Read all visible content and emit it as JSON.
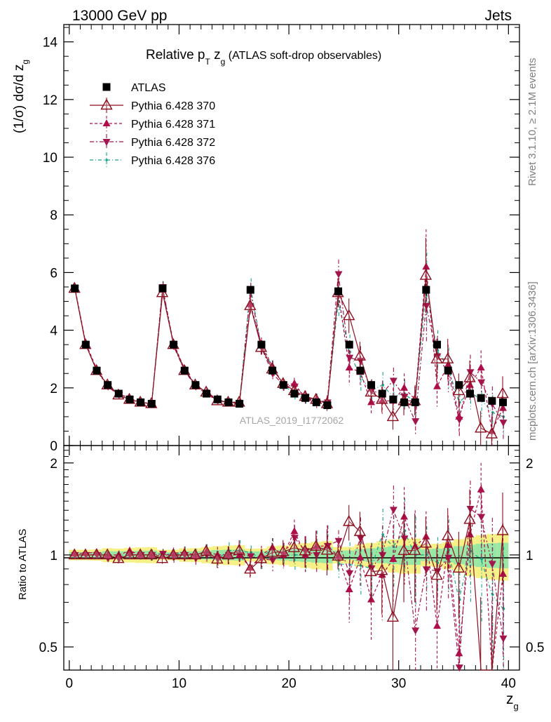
{
  "header": {
    "left": "13000 GeV pp",
    "right": "Jets"
  },
  "side_labels": {
    "rivet": "Rivet 3.1.10, ≥ 2.1M events",
    "mcplots": "mcplots.cern.ch [arXiv:1306.3436]"
  },
  "analysis_tag": "ATLAS_2019_I1772062",
  "chart_data": {
    "type": "scatter",
    "title_main": "Relative p",
    "title_sub": "T",
    "title_var": " z",
    "title_var_sub": "g",
    "title_rest": " (ATLAS soft-drop observables)",
    "ylabel": "(1/σ) dσ/d z",
    "ylabel_sub": "g",
    "xlabel": "z",
    "xlabel_sub": "g",
    "ratio_ylabel": "Ratio to ATLAS",
    "xlim": [
      -0.5,
      41
    ],
    "ylim": [
      0,
      14.6
    ],
    "ratio_ylim": [
      0.42,
      2.28
    ],
    "x_ticks": [
      "0",
      "10",
      "20",
      "30",
      "40"
    ],
    "x_tick_values": [
      0,
      10,
      20,
      30,
      40
    ],
    "y_ticks": [
      "0",
      "2",
      "4",
      "6",
      "8",
      "10",
      "12",
      "14"
    ],
    "y_tick_values": [
      0,
      2,
      4,
      6,
      8,
      10,
      12,
      14
    ],
    "ratio_ticks": [
      "0.5",
      "1",
      "2"
    ],
    "ratio_tick_values": [
      0.5,
      1,
      2
    ],
    "x": [
      0.5,
      1.5,
      2.5,
      3.5,
      4.5,
      5.5,
      6.5,
      7.5,
      8.5,
      9.5,
      10.5,
      11.5,
      12.5,
      13.5,
      14.5,
      15.5,
      16.5,
      17.5,
      18.5,
      19.5,
      20.5,
      21.5,
      22.5,
      23.5,
      24.5,
      25.5,
      26.5,
      27.5,
      28.5,
      29.5,
      30.5,
      31.5,
      32.5,
      33.5,
      34.5,
      35.5,
      36.5,
      37.5,
      38.5,
      39.5
    ],
    "series": [
      {
        "name": "ATLAS",
        "values": [
          5.45,
          3.5,
          2.6,
          2.1,
          1.8,
          1.6,
          1.5,
          1.45,
          5.45,
          3.5,
          2.6,
          2.1,
          1.8,
          1.6,
          1.5,
          1.45,
          5.4,
          3.5,
          2.6,
          2.1,
          1.8,
          1.65,
          1.5,
          1.4,
          5.35,
          3.5,
          2.6,
          2.1,
          1.8,
          1.6,
          1.5,
          1.5,
          5.4,
          3.5,
          2.6,
          2.1,
          1.8,
          1.65,
          1.55,
          1.5
        ],
        "errors": [
          0.08,
          0.06,
          0.05,
          0.05,
          0.04,
          0.04,
          0.04,
          0.04,
          0.08,
          0.06,
          0.06,
          0.05,
          0.05,
          0.05,
          0.05,
          0.05,
          0.12,
          0.08,
          0.08,
          0.07,
          0.07,
          0.07,
          0.07,
          0.07,
          0.15,
          0.1,
          0.1,
          0.09,
          0.09,
          0.09,
          0.09,
          0.09,
          0.2,
          0.14,
          0.12,
          0.12,
          0.12,
          0.12,
          0.12,
          0.12
        ],
        "color": "#000000"
      },
      {
        "name": "Pythia 6.428 370",
        "values": [
          5.45,
          3.5,
          2.6,
          2.1,
          1.75,
          1.6,
          1.5,
          1.45,
          5.3,
          3.5,
          2.6,
          2.1,
          1.85,
          1.55,
          1.5,
          1.5,
          4.85,
          3.4,
          2.65,
          2.15,
          1.9,
          1.7,
          1.6,
          1.45,
          5.3,
          4.5,
          3.1,
          1.85,
          1.6,
          1.0,
          1.55,
          1.55,
          5.9,
          3.0,
          3.0,
          1.9,
          2.35,
          0.6,
          0.4,
          1.8
        ],
        "errors": [
          0.1,
          0.08,
          0.07,
          0.06,
          0.06,
          0.05,
          0.05,
          0.06,
          0.2,
          0.15,
          0.12,
          0.1,
          0.1,
          0.1,
          0.1,
          0.12,
          0.3,
          0.25,
          0.2,
          0.2,
          0.2,
          0.2,
          0.2,
          0.25,
          0.5,
          0.6,
          0.5,
          0.4,
          0.45,
          0.45,
          0.5,
          0.5,
          1.3,
          0.7,
          0.7,
          0.6,
          0.6,
          0.6,
          0.6,
          0.6
        ],
        "color": "#8b0f1f"
      },
      {
        "name": "Pythia 6.428 371",
        "values": [
          5.5,
          3.55,
          2.65,
          2.1,
          1.8,
          1.65,
          1.5,
          1.45,
          5.4,
          3.55,
          2.65,
          2.1,
          1.85,
          1.6,
          1.5,
          1.45,
          4.9,
          3.5,
          2.75,
          2.1,
          2.15,
          1.65,
          1.6,
          1.5,
          5.3,
          2.7,
          2.55,
          1.5,
          1.55,
          1.55,
          2.0,
          1.6,
          6.2,
          2.05,
          2.8,
          1.0,
          2.1,
          2.7,
          0.5,
          1.3
        ],
        "errors": [
          0.1,
          0.08,
          0.07,
          0.06,
          0.06,
          0.05,
          0.05,
          0.06,
          0.2,
          0.15,
          0.12,
          0.1,
          0.1,
          0.1,
          0.1,
          0.12,
          0.3,
          0.25,
          0.2,
          0.2,
          0.2,
          0.2,
          0.2,
          0.25,
          0.5,
          0.6,
          0.5,
          0.4,
          0.45,
          0.45,
          0.5,
          0.5,
          1.3,
          0.7,
          0.7,
          0.6,
          0.6,
          0.6,
          0.6,
          0.6
        ],
        "color": "#b00e4a"
      },
      {
        "name": "Pythia 6.428 372",
        "values": [
          5.45,
          3.5,
          2.6,
          2.05,
          1.75,
          1.6,
          1.5,
          1.45,
          5.5,
          3.45,
          2.6,
          2.05,
          1.8,
          1.55,
          1.5,
          1.45,
          5.35,
          3.4,
          2.5,
          2.1,
          2.05,
          1.7,
          1.5,
          1.5,
          5.95,
          3.05,
          2.95,
          1.9,
          1.8,
          2.25,
          1.7,
          0.85,
          4.85,
          3.1,
          2.55,
          0.9,
          2.55,
          2.2,
          1.45,
          0.8
        ],
        "errors": [
          0.1,
          0.08,
          0.07,
          0.06,
          0.06,
          0.05,
          0.05,
          0.06,
          0.2,
          0.15,
          0.12,
          0.1,
          0.1,
          0.1,
          0.1,
          0.12,
          0.3,
          0.25,
          0.2,
          0.2,
          0.2,
          0.2,
          0.2,
          0.25,
          0.5,
          0.6,
          0.5,
          0.4,
          0.45,
          0.45,
          0.5,
          0.5,
          1.3,
          0.7,
          0.7,
          0.6,
          0.6,
          0.6,
          0.6,
          0.6
        ],
        "color": "#a3154d"
      },
      {
        "name": "Pythia 6.428 376",
        "values": [
          5.45,
          3.5,
          2.6,
          2.1,
          1.8,
          1.6,
          1.5,
          1.45,
          5.5,
          3.5,
          2.65,
          2.1,
          1.85,
          1.55,
          1.55,
          1.5,
          5.5,
          3.4,
          2.75,
          2.1,
          1.8,
          1.65,
          1.6,
          1.5,
          5.0,
          3.25,
          2.4,
          1.9,
          2.1,
          1.7,
          1.8,
          1.5,
          5.4,
          3.3,
          2.7,
          1.5,
          1.85,
          1.6,
          1.15,
          1.0
        ],
        "errors": [
          0.1,
          0.08,
          0.07,
          0.06,
          0.06,
          0.05,
          0.05,
          0.06,
          0.2,
          0.15,
          0.12,
          0.1,
          0.1,
          0.1,
          0.1,
          0.12,
          0.3,
          0.25,
          0.2,
          0.2,
          0.2,
          0.2,
          0.2,
          0.25,
          0.5,
          0.6,
          0.5,
          0.4,
          0.45,
          0.45,
          0.5,
          0.5,
          1.3,
          0.7,
          0.7,
          0.6,
          0.6,
          0.6,
          0.6,
          0.6
        ],
        "color": "#17a589"
      }
    ],
    "legend": "top-left",
    "grid": false
  }
}
